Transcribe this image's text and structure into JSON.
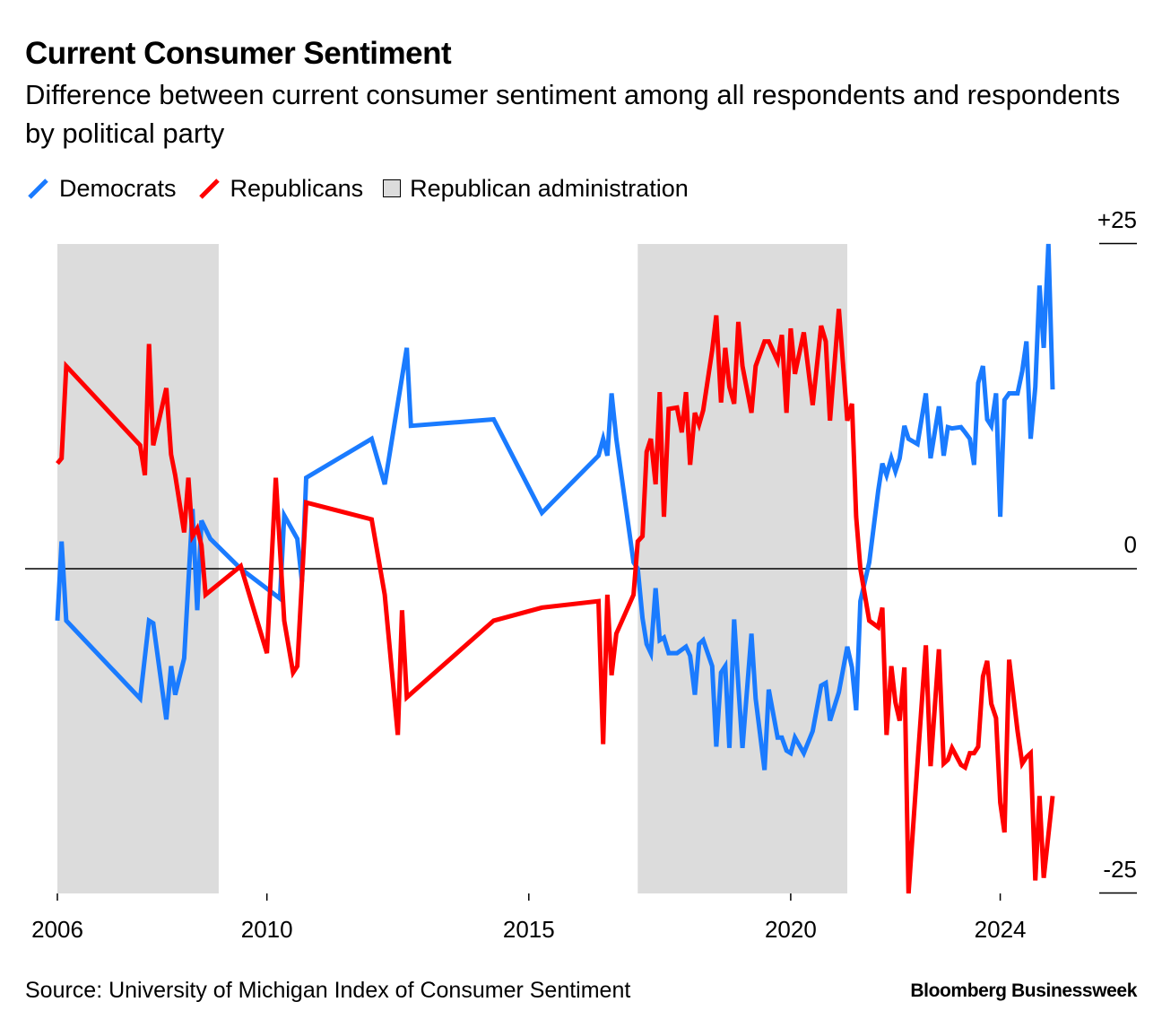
{
  "chart_data": {
    "type": "line",
    "title": "Current Consumer Sentiment",
    "subtitle": "Difference between current consumer sentiment among all respondents and respondents by political party",
    "legend": [
      "Democrats",
      "Republicans",
      "Republican administration"
    ],
    "source": "Source: University of Michigan Index of Consumer Sentiment",
    "branding": "Bloomberg Businessweek",
    "xlim": [
      2006,
      2024.5
    ],
    "ylim": [
      -25,
      25
    ],
    "x_ticks": [
      "2006",
      "2010",
      "2015",
      "2020",
      "2024"
    ],
    "y_ticks": [
      "+25",
      "0",
      "-25"
    ],
    "grid": false,
    "legend_position": "top-left",
    "colors": {
      "democrats": "#1a7bff",
      "republicans": "#ff0000",
      "shade": "#dcdcdc",
      "zero": "#000000"
    },
    "shaded_periods": [
      {
        "start": 2006.0,
        "end": 2009.08,
        "label": "Republican administration"
      },
      {
        "start": 2017.08,
        "end": 2021.08,
        "label": "Republican administration"
      }
    ],
    "series": [
      {
        "name": "Democrats",
        "color": "#1a7bff",
        "points": [
          [
            2006.0,
            -4.0
          ],
          [
            2006.08,
            2.1
          ],
          [
            2006.17,
            -4.0
          ],
          [
            2007.58,
            -10.0
          ],
          [
            2007.75,
            -4.0
          ],
          [
            2007.83,
            -4.2
          ],
          [
            2008.08,
            -11.6
          ],
          [
            2008.17,
            -7.5
          ],
          [
            2008.25,
            -9.7
          ],
          [
            2008.42,
            -6.9
          ],
          [
            2008.58,
            4.6
          ],
          [
            2008.67,
            -3.2
          ],
          [
            2008.75,
            3.7
          ],
          [
            2008.92,
            2.3
          ],
          [
            2009.5,
            0.0
          ],
          [
            2010.25,
            -2.3
          ],
          [
            2010.33,
            4.1
          ],
          [
            2010.58,
            2.3
          ],
          [
            2010.67,
            -1.0
          ],
          [
            2010.75,
            7.0
          ],
          [
            2012.0,
            10.0
          ],
          [
            2012.25,
            6.5
          ],
          [
            2012.33,
            8.5
          ],
          [
            2012.67,
            17.0
          ],
          [
            2012.75,
            11.0
          ],
          [
            2014.33,
            11.5
          ],
          [
            2015.25,
            4.3
          ],
          [
            2016.33,
            8.7
          ],
          [
            2016.42,
            10.0
          ],
          [
            2016.5,
            8.7
          ],
          [
            2016.58,
            13.5
          ],
          [
            2016.67,
            10.0
          ],
          [
            2017.0,
            0.5
          ],
          [
            2017.08,
            0.0
          ],
          [
            2017.17,
            -3.8
          ],
          [
            2017.25,
            -5.8
          ],
          [
            2017.33,
            -6.5
          ],
          [
            2017.42,
            -1.5
          ],
          [
            2017.5,
            -5.5
          ],
          [
            2017.58,
            -5.3
          ],
          [
            2017.67,
            -6.5
          ],
          [
            2017.83,
            -6.5
          ],
          [
            2018.0,
            -6.0
          ],
          [
            2018.08,
            -6.7
          ],
          [
            2018.17,
            -9.7
          ],
          [
            2018.25,
            -5.8
          ],
          [
            2018.33,
            -5.5
          ],
          [
            2018.5,
            -7.5
          ],
          [
            2018.58,
            -13.7
          ],
          [
            2018.67,
            -8.0
          ],
          [
            2018.75,
            -7.5
          ],
          [
            2018.83,
            -13.8
          ],
          [
            2018.92,
            -3.9
          ],
          [
            2019.0,
            -9.0
          ],
          [
            2019.08,
            -13.8
          ],
          [
            2019.25,
            -5.0
          ],
          [
            2019.33,
            -10.0
          ],
          [
            2019.5,
            -15.5
          ],
          [
            2019.58,
            -9.3
          ],
          [
            2019.75,
            -13.0
          ],
          [
            2019.83,
            -13.0
          ],
          [
            2019.92,
            -14.0
          ],
          [
            2020.0,
            -14.2
          ],
          [
            2020.08,
            -13.0
          ],
          [
            2020.25,
            -14.2
          ],
          [
            2020.42,
            -12.5
          ],
          [
            2020.58,
            -9.0
          ],
          [
            2020.67,
            -8.8
          ],
          [
            2020.75,
            -11.7
          ],
          [
            2020.92,
            -9.5
          ],
          [
            2021.08,
            -6.0
          ],
          [
            2021.17,
            -7.6
          ],
          [
            2021.25,
            -10.9
          ],
          [
            2021.33,
            -2.5
          ],
          [
            2021.5,
            0.5
          ],
          [
            2021.67,
            6.0
          ],
          [
            2021.75,
            8.1
          ],
          [
            2021.83,
            7.2
          ],
          [
            2021.92,
            8.5
          ],
          [
            2022.0,
            7.5
          ],
          [
            2022.08,
            8.5
          ],
          [
            2022.17,
            11.0
          ],
          [
            2022.25,
            10.0
          ],
          [
            2022.42,
            9.6
          ],
          [
            2022.58,
            13.5
          ],
          [
            2022.67,
            8.5
          ],
          [
            2022.83,
            12.5
          ],
          [
            2022.92,
            8.7
          ],
          [
            2023.0,
            10.9
          ],
          [
            2023.08,
            10.8
          ],
          [
            2023.25,
            10.9
          ],
          [
            2023.33,
            10.5
          ],
          [
            2023.42,
            10.0
          ],
          [
            2023.5,
            8.0
          ],
          [
            2023.58,
            14.3
          ],
          [
            2023.67,
            15.6
          ],
          [
            2023.75,
            11.5
          ],
          [
            2023.83,
            11.0
          ],
          [
            2023.92,
            13.5
          ],
          [
            2024.0,
            4.0
          ],
          [
            2024.08,
            13.0
          ],
          [
            2024.17,
            13.5
          ],
          [
            2024.33,
            13.5
          ],
          [
            2024.42,
            15.2
          ],
          [
            2024.5,
            17.5
          ],
          [
            2024.58,
            10.0
          ],
          [
            2024.67,
            14.0
          ],
          [
            2024.75,
            21.8
          ],
          [
            2024.83,
            17.0
          ],
          [
            2024.92,
            25.0
          ],
          [
            2025.0,
            13.8
          ]
        ]
      },
      {
        "name": "Republicans",
        "color": "#ff0000",
        "points": [
          [
            2006.0,
            8.1
          ],
          [
            2006.08,
            8.5
          ],
          [
            2006.17,
            15.6
          ],
          [
            2007.58,
            9.5
          ],
          [
            2007.67,
            7.2
          ],
          [
            2007.75,
            17.3
          ],
          [
            2007.83,
            9.5
          ],
          [
            2008.08,
            13.9
          ],
          [
            2008.17,
            8.8
          ],
          [
            2008.25,
            7.2
          ],
          [
            2008.42,
            2.8
          ],
          [
            2008.5,
            7.0
          ],
          [
            2008.58,
            2.5
          ],
          [
            2008.67,
            3.1
          ],
          [
            2008.75,
            1.8
          ],
          [
            2008.83,
            -2.0
          ],
          [
            2009.5,
            0.2
          ],
          [
            2010.0,
            -6.5
          ],
          [
            2010.17,
            7.0
          ],
          [
            2010.33,
            -4.0
          ],
          [
            2010.5,
            -8.0
          ],
          [
            2010.58,
            -7.5
          ],
          [
            2010.75,
            5.1
          ],
          [
            2012.0,
            3.8
          ],
          [
            2012.25,
            -2.0
          ],
          [
            2012.5,
            -12.8
          ],
          [
            2012.58,
            -3.2
          ],
          [
            2012.67,
            -9.9
          ],
          [
            2014.33,
            -4.0
          ],
          [
            2015.25,
            -3.0
          ],
          [
            2016.33,
            -2.5
          ],
          [
            2016.42,
            -13.5
          ],
          [
            2016.5,
            -2.0
          ],
          [
            2016.58,
            -8.2
          ],
          [
            2016.67,
            -5.0
          ],
          [
            2017.0,
            -2.0
          ],
          [
            2017.08,
            2.1
          ],
          [
            2017.17,
            2.5
          ],
          [
            2017.25,
            9.0
          ],
          [
            2017.33,
            10.0
          ],
          [
            2017.42,
            6.5
          ],
          [
            2017.5,
            13.6
          ],
          [
            2017.58,
            4.0
          ],
          [
            2017.67,
            12.3
          ],
          [
            2017.83,
            12.4
          ],
          [
            2017.92,
            10.5
          ],
          [
            2018.0,
            13.6
          ],
          [
            2018.08,
            8.0
          ],
          [
            2018.17,
            12.0
          ],
          [
            2018.25,
            11.1
          ],
          [
            2018.33,
            12.2
          ],
          [
            2018.5,
            16.8
          ],
          [
            2018.58,
            19.5
          ],
          [
            2018.67,
            12.8
          ],
          [
            2018.75,
            17.0
          ],
          [
            2018.83,
            14.0
          ],
          [
            2018.92,
            12.7
          ],
          [
            2019.0,
            19.0
          ],
          [
            2019.08,
            15.6
          ],
          [
            2019.25,
            12.0
          ],
          [
            2019.33,
            15.6
          ],
          [
            2019.5,
            17.5
          ],
          [
            2019.58,
            17.5
          ],
          [
            2019.75,
            16.0
          ],
          [
            2019.83,
            18.0
          ],
          [
            2019.92,
            12.0
          ],
          [
            2020.0,
            18.5
          ],
          [
            2020.08,
            15.0
          ],
          [
            2020.25,
            18.2
          ],
          [
            2020.42,
            12.6
          ],
          [
            2020.58,
            18.7
          ],
          [
            2020.67,
            17.5
          ],
          [
            2020.75,
            11.4
          ],
          [
            2020.92,
            20.0
          ],
          [
            2021.08,
            11.4
          ],
          [
            2021.17,
            12.7
          ],
          [
            2021.25,
            4.0
          ],
          [
            2021.33,
            0.0
          ],
          [
            2021.5,
            -4.0
          ],
          [
            2021.67,
            -4.5
          ],
          [
            2021.75,
            -3.0
          ],
          [
            2021.83,
            -12.8
          ],
          [
            2021.92,
            -7.5
          ],
          [
            2022.0,
            -10.3
          ],
          [
            2022.08,
            -11.7
          ],
          [
            2022.17,
            -7.6
          ],
          [
            2022.25,
            -25.0
          ],
          [
            2022.42,
            -15.0
          ],
          [
            2022.58,
            -5.9
          ],
          [
            2022.67,
            -15.2
          ],
          [
            2022.83,
            -6.2
          ],
          [
            2022.92,
            -15.0
          ],
          [
            2023.0,
            -14.7
          ],
          [
            2023.08,
            -13.8
          ],
          [
            2023.25,
            -15.1
          ],
          [
            2023.33,
            -15.3
          ],
          [
            2023.42,
            -14.2
          ],
          [
            2023.5,
            -14.2
          ],
          [
            2023.58,
            -13.7
          ],
          [
            2023.67,
            -8.3
          ],
          [
            2023.75,
            -7.1
          ],
          [
            2023.83,
            -10.4
          ],
          [
            2023.92,
            -11.5
          ],
          [
            2024.0,
            -18.0
          ],
          [
            2024.08,
            -20.3
          ],
          [
            2024.17,
            -7.0
          ],
          [
            2024.33,
            -12.5
          ],
          [
            2024.42,
            -15.0
          ],
          [
            2024.5,
            -14.5
          ],
          [
            2024.58,
            -14.2
          ],
          [
            2024.67,
            -24.0
          ],
          [
            2024.75,
            -17.5
          ],
          [
            2024.83,
            -23.8
          ],
          [
            2025.0,
            -17.5
          ]
        ]
      }
    ]
  }
}
